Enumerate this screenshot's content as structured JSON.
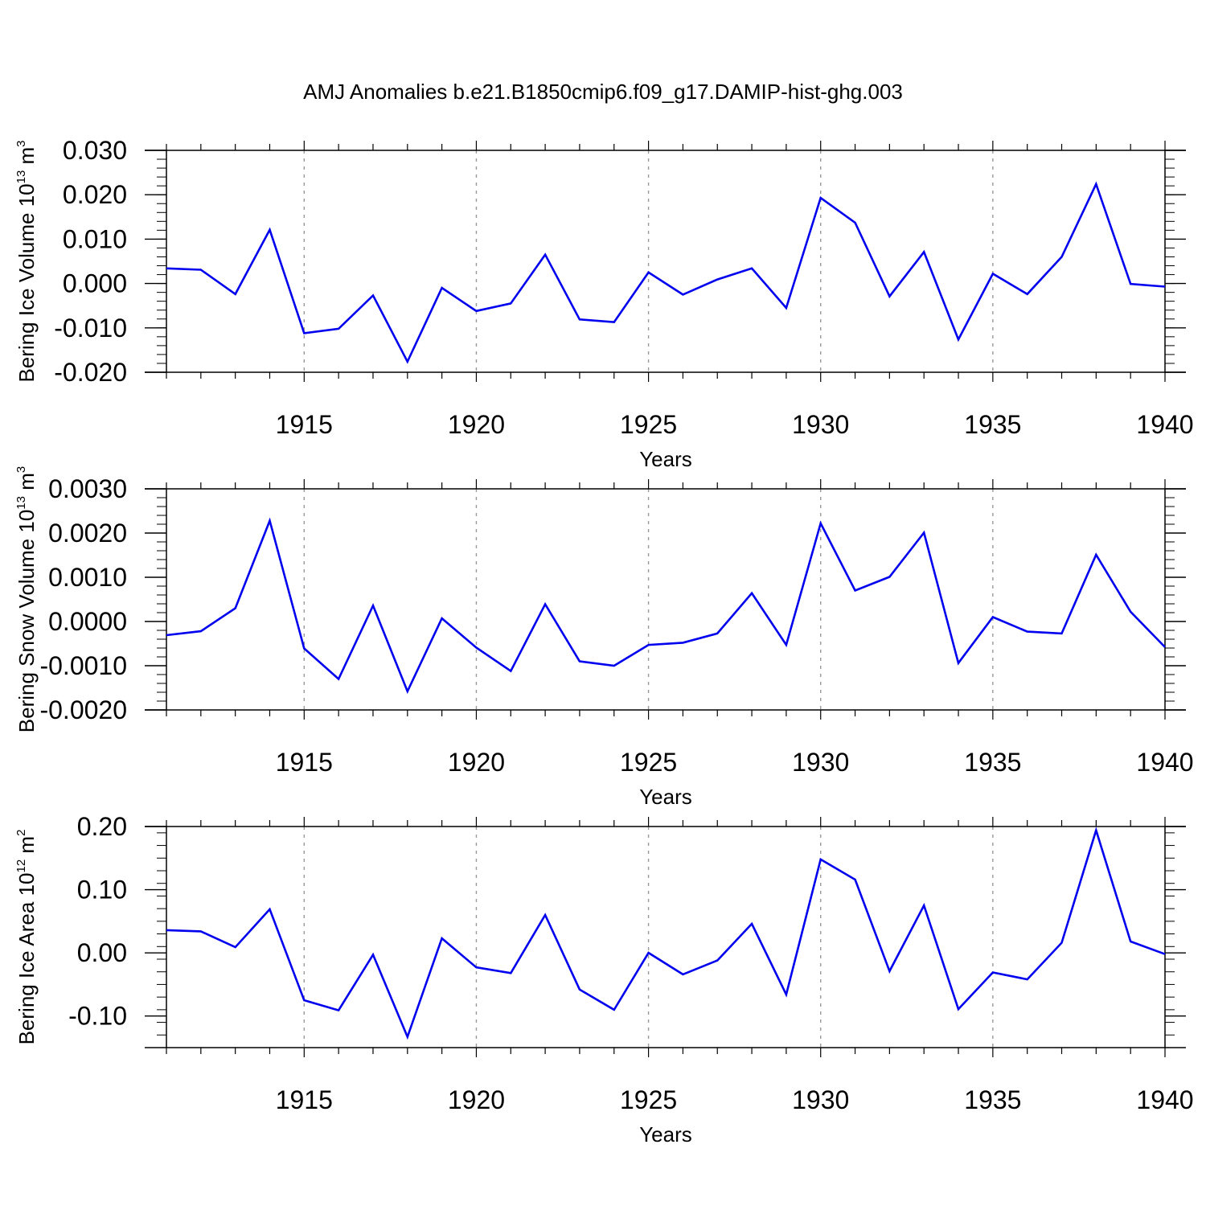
{
  "figure": {
    "title": "AMJ Anomalies b.e21.B1850cmip6.f09_g17.DAMIP-hist-ghg.003",
    "line_color": "#0000ee",
    "grid_color": "#999999"
  },
  "chart_data": [
    {
      "type": "line",
      "title": "",
      "xlabel": "Years",
      "ylabel": {
        "text": "Bering Ice Volume 10",
        "exp": "13",
        "unit": " m",
        "unit_exp": "3"
      },
      "xlim": [
        1911,
        1940
      ],
      "ylim": [
        -0.02,
        0.03
      ],
      "x_ticks": [
        1915,
        1920,
        1925,
        1930,
        1935,
        1940
      ],
      "x_tick_labels": [
        "1915",
        "1920",
        "1925",
        "1930",
        "1935",
        "1940"
      ],
      "y_ticks": [
        -0.02,
        -0.01,
        0.0,
        0.01,
        0.02,
        0.03
      ],
      "y_tick_labels": [
        "-0.020",
        "-0.010",
        "0.000",
        "0.010",
        "0.020",
        "0.030"
      ],
      "grid": "vertical dashed at major x ticks",
      "x": [
        1911,
        1912,
        1913,
        1914,
        1915,
        1916,
        1917,
        1918,
        1919,
        1920,
        1921,
        1922,
        1923,
        1924,
        1925,
        1926,
        1927,
        1928,
        1929,
        1930,
        1931,
        1932,
        1933,
        1934,
        1935,
        1936,
        1937,
        1938,
        1939,
        1940
      ],
      "values": [
        0.0034,
        0.0031,
        -0.0024,
        0.0121,
        -0.0112,
        -0.0102,
        -0.0027,
        -0.0176,
        -0.001,
        -0.0062,
        -0.0045,
        0.0065,
        -0.0081,
        -0.0087,
        0.0025,
        -0.0025,
        0.0009,
        0.0034,
        -0.0055,
        0.0193,
        0.0137,
        -0.0029,
        0.0071,
        -0.0126,
        0.0022,
        -0.0024,
        0.006,
        0.0224,
        -0.0001,
        -0.0007
      ]
    },
    {
      "type": "line",
      "title": "",
      "xlabel": "Years",
      "ylabel": {
        "text": "Bering Snow Volume 10",
        "exp": "13",
        "unit": " m",
        "unit_exp": "3"
      },
      "xlim": [
        1911,
        1940
      ],
      "ylim": [
        -0.002,
        0.003
      ],
      "x_ticks": [
        1915,
        1920,
        1925,
        1930,
        1935,
        1940
      ],
      "x_tick_labels": [
        "1915",
        "1920",
        "1925",
        "1930",
        "1935",
        "1940"
      ],
      "y_ticks": [
        -0.002,
        -0.001,
        0.0,
        0.001,
        0.002,
        0.003
      ],
      "y_tick_labels": [
        "-0.0020",
        "-0.0010",
        "0.0000",
        "0.0010",
        "0.0020",
        "0.0030"
      ],
      "grid": "vertical dashed at major x ticks",
      "x": [
        1911,
        1912,
        1913,
        1914,
        1915,
        1916,
        1917,
        1918,
        1919,
        1920,
        1921,
        1922,
        1923,
        1924,
        1925,
        1926,
        1927,
        1928,
        1929,
        1930,
        1931,
        1932,
        1933,
        1934,
        1935,
        1936,
        1937,
        1938,
        1939,
        1940
      ],
      "values": [
        -0.00031,
        -0.00022,
        0.0003,
        0.00228,
        -0.00061,
        -0.0013,
        0.00036,
        -0.00158,
        7e-05,
        -0.00059,
        -0.00112,
        0.00039,
        -0.0009,
        -0.001,
        -0.00053,
        -0.00048,
        -0.00027,
        0.00064,
        -0.00053,
        0.00222,
        0.0007,
        0.00101,
        0.00201,
        -0.00094,
        0.0001,
        -0.00023,
        -0.00027,
        0.00151,
        0.00022,
        -0.00058
      ]
    },
    {
      "type": "line",
      "title": "",
      "xlabel": "Years",
      "ylabel": {
        "text": "Bering Ice Area 10",
        "exp": "12",
        "unit": " m",
        "unit_exp": "2"
      },
      "xlim": [
        1911,
        1940
      ],
      "ylim": [
        -0.15,
        0.2
      ],
      "x_ticks": [
        1915,
        1920,
        1925,
        1930,
        1935,
        1940
      ],
      "x_tick_labels": [
        "1915",
        "1920",
        "1925",
        "1930",
        "1935",
        "1940"
      ],
      "y_ticks": [
        -0.1,
        0.0,
        0.1,
        0.2
      ],
      "y_tick_labels": [
        "-0.10",
        "0.00",
        "0.10",
        "0.20"
      ],
      "grid": "vertical dashed at major x ticks",
      "x": [
        1911,
        1912,
        1913,
        1914,
        1915,
        1916,
        1917,
        1918,
        1919,
        1920,
        1921,
        1922,
        1923,
        1924,
        1925,
        1926,
        1927,
        1928,
        1929,
        1930,
        1931,
        1932,
        1933,
        1934,
        1935,
        1936,
        1937,
        1938,
        1939,
        1940
      ],
      "values": [
        0.036,
        0.034,
        0.009,
        0.069,
        -0.075,
        -0.091,
        -0.003,
        -0.133,
        0.023,
        -0.023,
        -0.032,
        0.06,
        -0.058,
        -0.09,
        0.0,
        -0.034,
        -0.012,
        0.046,
        -0.066,
        0.148,
        0.116,
        -0.029,
        0.075,
        -0.089,
        -0.031,
        -0.042,
        0.016,
        0.194,
        0.018,
        -0.002
      ]
    }
  ]
}
